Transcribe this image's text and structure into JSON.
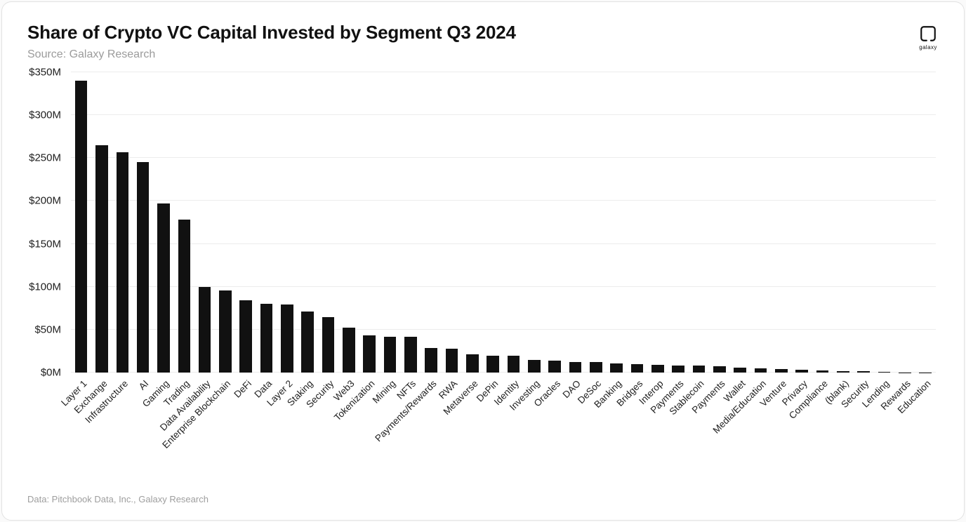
{
  "header": {
    "title": "Share of Crypto VC Capital Invested by Segment Q3 2024",
    "source": "Source: Galaxy Research"
  },
  "logo": {
    "label": "galaxy"
  },
  "footer": {
    "credit": "Data: Pitchbook Data, Inc., Galaxy Research"
  },
  "chart_data": {
    "type": "bar",
    "title": "Share of Crypto VC Capital Invested by Segment Q3 2024",
    "categories": [
      "Layer 1",
      "Exchange",
      "Infrastructure",
      "AI",
      "Gaming",
      "Trading",
      "Data Availability",
      "Enterprise Blockchain",
      "DeFi",
      "Data",
      "Layer 2",
      "Staking",
      "Security",
      "Web3",
      "Tokenization",
      "Mining",
      "NFTs",
      "Payments/Rewards",
      "RWA",
      "Metaverse",
      "DePin",
      "Identity",
      "Investing",
      "Oracles",
      "DAO",
      "DeSoc",
      "Banking",
      "Bridges",
      "Interop",
      "Payments",
      "Stablecoin",
      "Payments",
      "Wallet",
      "Media/Education",
      "Venture",
      "Privacy",
      "Compliance",
      "(blank)",
      "Security",
      "Lending",
      "Rewards",
      "Education"
    ],
    "values": [
      340,
      265,
      257,
      245,
      197,
      178,
      100,
      96,
      84,
      80,
      79,
      71,
      65,
      52,
      43,
      42,
      42,
      29,
      28,
      21,
      20,
      20,
      15,
      14,
      12,
      12,
      11,
      10,
      9,
      8,
      8,
      7,
      6,
      5,
      4,
      3.5,
      2.5,
      2,
      1.5,
      0.5,
      0.3,
      0.2
    ],
    "value_unit": "$M",
    "bar_color": "#111111",
    "xlabel": "",
    "ylabel": "",
    "ylim": [
      0,
      350
    ],
    "ytick_step": 50,
    "ytick_labels": [
      "$0M",
      "$50M",
      "$100M",
      "$150M",
      "$200M",
      "$250M",
      "$300M",
      "$350M"
    ],
    "grid": true,
    "legend": "none"
  }
}
